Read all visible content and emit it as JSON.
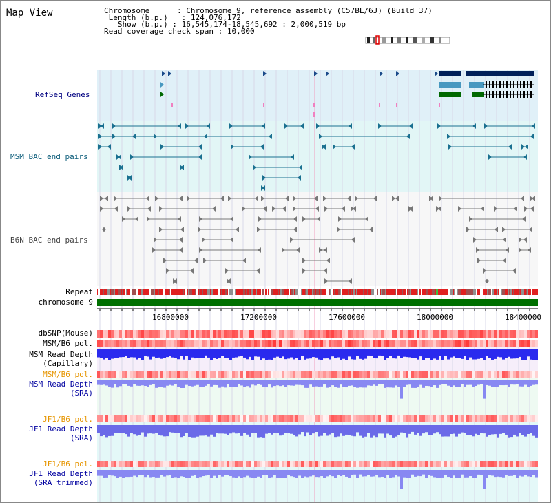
{
  "view": {
    "title": "Map View",
    "info": {
      "chromosome_label": "Chromosome",
      "chromosome_value": "Chromosome 9, reference assembly (C57BL/6J) (Build 37)",
      "length_label": "Length (b.p.)",
      "length_value": "124,076,172",
      "show_label": "Show (b.p.)",
      "show_value": "16,545,174-18,545,692 : 2,000,519 bp",
      "span_label": "Read coverage check span",
      "span_value": "10,000"
    }
  },
  "tracks": {
    "refseq": "RefSeq Genes",
    "msm_bac": "MSM BAC end pairs",
    "b6n_bac": "B6N BAC end pairs",
    "repeat": "Repeat",
    "chromosome": "chromosome 9",
    "dbsnp": "dbSNP(Mouse)",
    "msm_b6_pol": "MSM/B6 pol.",
    "msm_depth_cap_1": "MSM Read Depth",
    "msm_depth_cap_2": "(Capillary)",
    "msm_b6_pol2": "MSM/B6 pol.",
    "msm_depth_sra_1": "MSM Read Depth",
    "msm_depth_sra_2": "(SRA)",
    "jf1_b6_pol": "JF1/B6 pol.",
    "jf1_depth_sra_1": "JF1 Read Depth",
    "jf1_depth_sra_2": "(SRA)",
    "jf1_b6_pol2": "JF1/B6 pol.",
    "jf1_depth_trim_1": "JF1 Read Depth",
    "jf1_depth_trim_2": "(SRA trimmed)"
  },
  "axis": {
    "ticks": [
      "16800000",
      "17200000",
      "17600000",
      "18000000",
      "18400000"
    ]
  },
  "colors": {
    "refseq_bg": "#e0f0f8",
    "msm_bg": "#e2f6f6",
    "b6n_bg": "#f7f7f7",
    "chromosome": "#007000",
    "gene_dark": "#00205a",
    "gene_light": "#4898c0",
    "gene_green": "#006800",
    "depth_blue": "#2a2aee",
    "depth_light": "#8888f2",
    "navy_label": "#000080",
    "orange_label": "#e69500"
  }
}
